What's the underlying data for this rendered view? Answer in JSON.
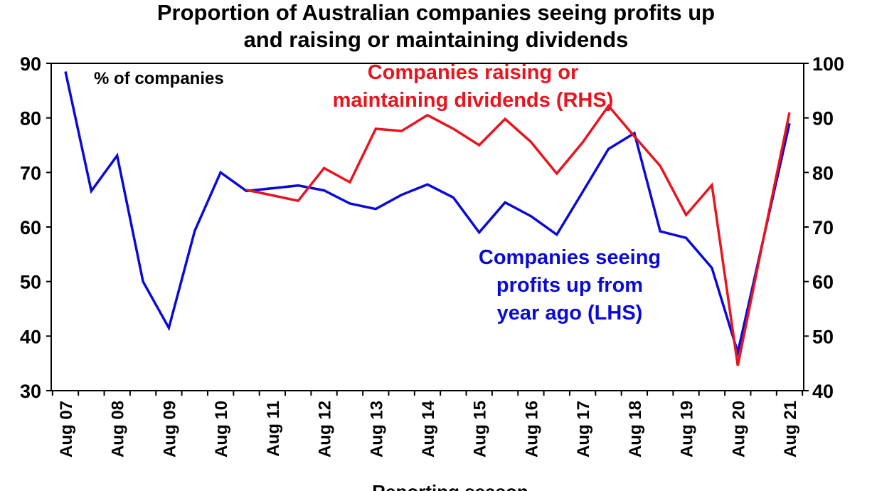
{
  "chart_data": {
    "type": "line",
    "title_line1": "Proportion of Australian companies seeing profits up",
    "title_line2": "and raising or maintaining dividends",
    "xlabel": "Reporting season",
    "y_left_note": "% of companies",
    "y_left_lim": [
      30,
      90
    ],
    "y_left_ticks": [
      "90",
      "80",
      "70",
      "60",
      "50",
      "40",
      "30"
    ],
    "y_right_lim": [
      40,
      100
    ],
    "y_right_ticks": [
      "100",
      "90",
      "80",
      "70",
      "60",
      "50",
      "40"
    ],
    "x_tick_labels": [
      "Aug 07",
      "Aug 08",
      "Aug 09",
      "Aug 10",
      "Aug 11",
      "Aug 12",
      "Aug 13",
      "Aug 14",
      "Aug 15",
      "Aug 16",
      "Aug 17",
      "Aug 18",
      "Aug 19",
      "Aug 20",
      "Aug 21"
    ],
    "periods": [
      "Aug 07",
      "Feb 08",
      "Aug 08",
      "Feb 09",
      "Aug 09",
      "Feb 10",
      "Aug 10",
      "Feb 11",
      "Aug 11",
      "Feb 12",
      "Aug 12",
      "Feb 13",
      "Aug 13",
      "Feb 14",
      "Aug 14",
      "Feb 15",
      "Aug 15",
      "Feb 16",
      "Aug 16",
      "Feb 17",
      "Aug 17",
      "Feb 18",
      "Aug 18",
      "Feb 19",
      "Aug 19",
      "Feb 20",
      "Aug 20",
      "Feb 21",
      "Aug 21"
    ],
    "series": [
      {
        "name": "Companies seeing profits up from year ago (LHS)",
        "label_lines": [
          "Companies seeing",
          "profits up from",
          "year ago (LHS)"
        ],
        "axis": "left",
        "color": "#0a0ad8",
        "values": [
          88.5,
          66.6,
          73.1,
          50.0,
          41.5,
          59.3,
          70.0,
          66.6,
          67.1,
          67.6,
          66.7,
          64.3,
          63.3,
          65.9,
          67.8,
          65.4,
          59.0,
          64.5,
          62.0,
          58.6,
          66.4,
          74.3,
          77.2,
          59.2,
          58.0,
          52.5,
          37.0,
          58.0,
          79.0
        ]
      },
      {
        "name": "Companies raising or maintaining dividends (RHS)",
        "label_lines": [
          "Companies raising or",
          "maintaining dividends (RHS)"
        ],
        "axis": "right",
        "color": "#e8141e",
        "values": [
          null,
          null,
          null,
          null,
          null,
          null,
          null,
          76.8,
          75.8,
          74.8,
          80.8,
          78.2,
          88.0,
          87.6,
          90.5,
          88.0,
          85.0,
          89.8,
          85.6,
          79.8,
          85.5,
          92.2,
          86.6,
          81.2,
          72.2,
          77.7,
          44.6,
          68.0,
          91.0
        ]
      }
    ]
  }
}
